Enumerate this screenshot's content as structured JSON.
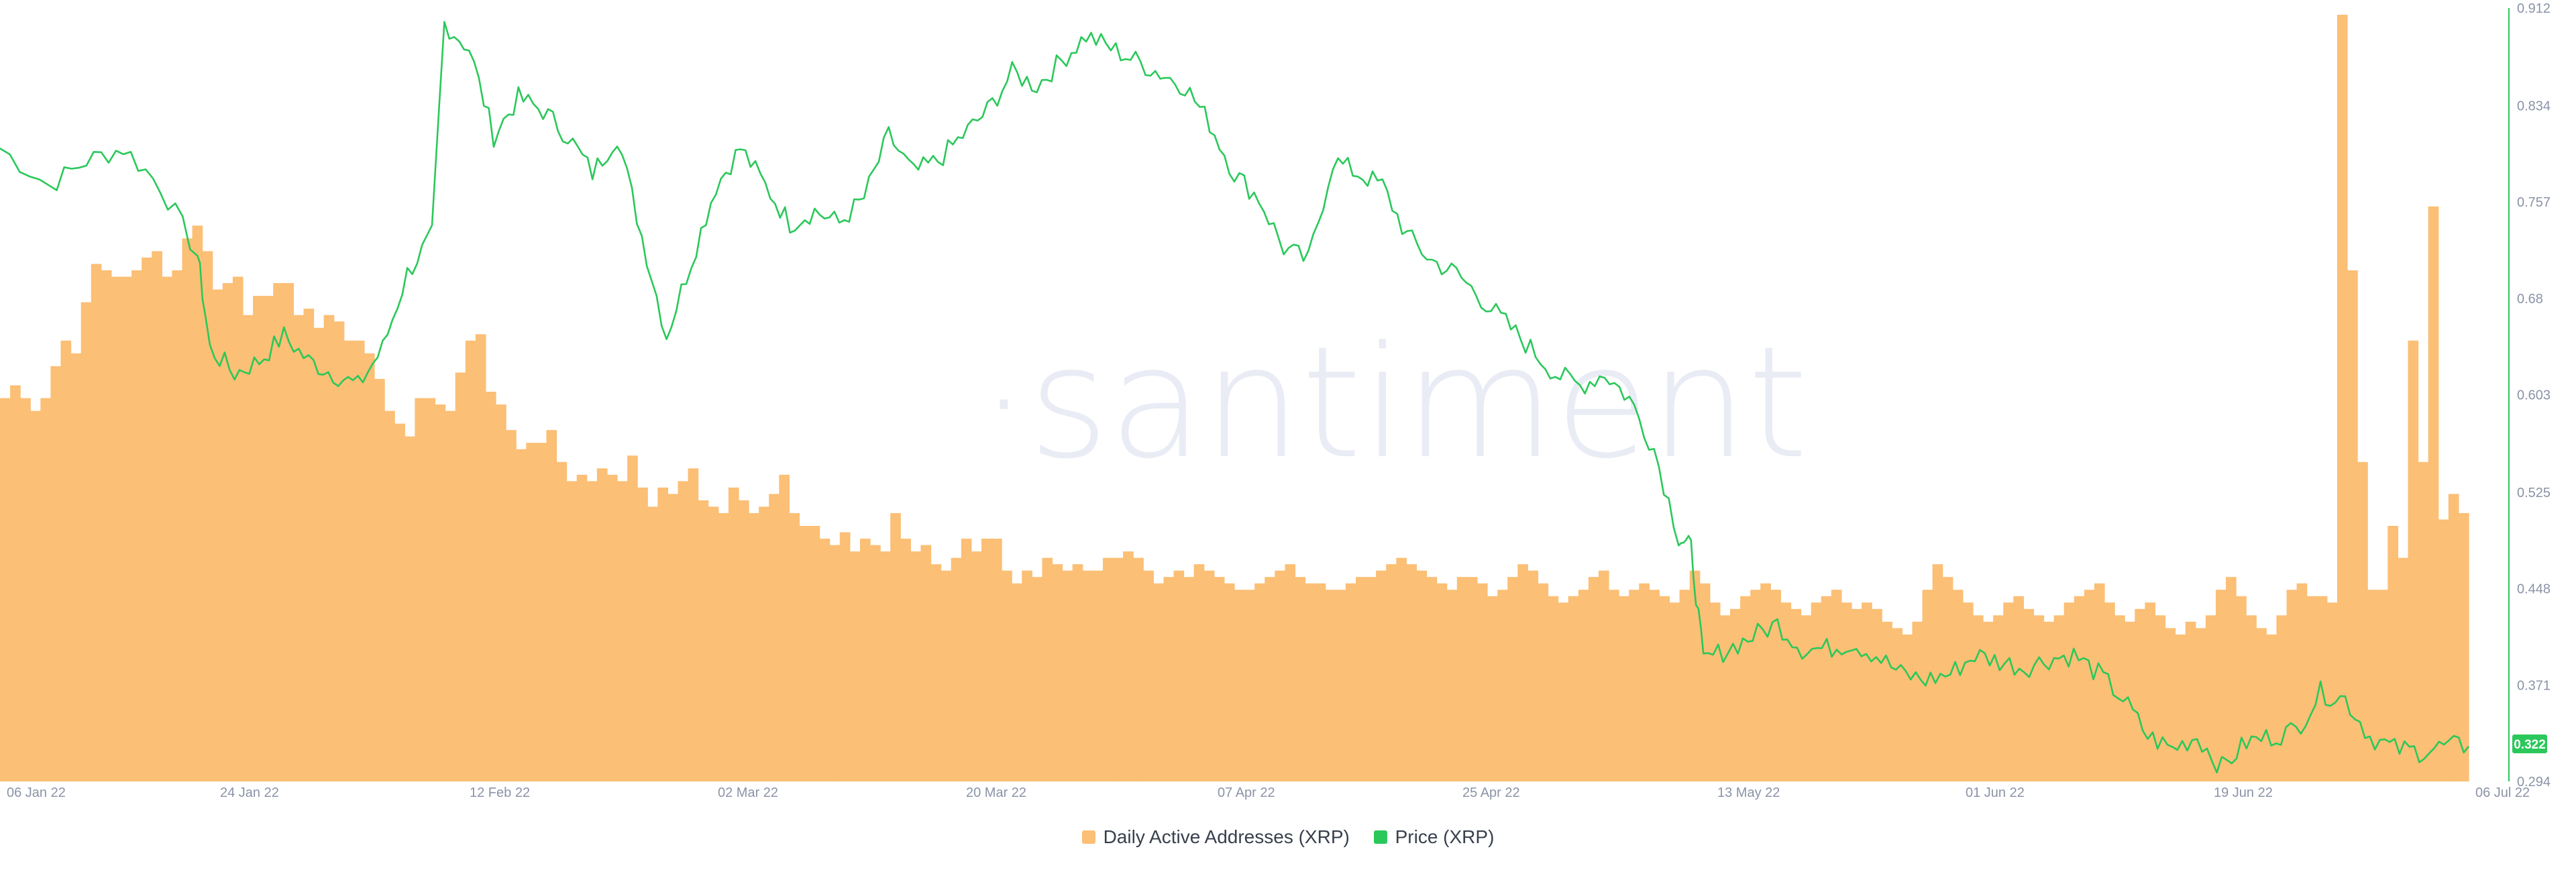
{
  "chart_data": {
    "type": "bar+line",
    "watermark": "·santiment",
    "x_labels": [
      "06 Jan 22",
      "24 Jan 22",
      "12 Feb 22",
      "02 Mar 22",
      "20 Mar 22",
      "07 Apr 22",
      "25 Apr 22",
      "13 May 22",
      "01 Jun 22",
      "19 Jun 22",
      "06 Jul 22"
    ],
    "y_right_ticks": [
      "0.912",
      "0.834",
      "0.757",
      "0.68",
      "0.603",
      "0.525",
      "0.448",
      "0.371",
      "0.294"
    ],
    "y_right_range": [
      0.294,
      0.912
    ],
    "current_price_label": "0.322",
    "series": [
      {
        "name": "Daily Active Addresses (XRP)",
        "kind": "bar",
        "color": "#fbbf75",
        "values": [
          600,
          620,
          600,
          580,
          600,
          650,
          690,
          670,
          750,
          810,
          800,
          790,
          790,
          800,
          820,
          830,
          790,
          800,
          850,
          870,
          830,
          770,
          780,
          790,
          730,
          760,
          760,
          780,
          780,
          730,
          740,
          710,
          730,
          720,
          690,
          690,
          670,
          630,
          580,
          560,
          540,
          600,
          600,
          590,
          580,
          640,
          690,
          700,
          610,
          590,
          550,
          520,
          530,
          530,
          550,
          500,
          470,
          480,
          470,
          490,
          480,
          470,
          510,
          460,
          430,
          460,
          450,
          470,
          490,
          440,
          430,
          420,
          460,
          440,
          420,
          430,
          450,
          480,
          420,
          400,
          400,
          380,
          370,
          390,
          360,
          380,
          370,
          360,
          420,
          380,
          360,
          370,
          340,
          330,
          350,
          380,
          360,
          380,
          380,
          330,
          310,
          330,
          320,
          350,
          340,
          330,
          340,
          330,
          330,
          350,
          350,
          360,
          350,
          330,
          310,
          320,
          330,
          320,
          340,
          330,
          320,
          310,
          300,
          300,
          310,
          320,
          330,
          340,
          320,
          310,
          310,
          300,
          300,
          310,
          320,
          320,
          330,
          340,
          350,
          340,
          330,
          320,
          310,
          300,
          320,
          320,
          310,
          290,
          300,
          320,
          340,
          330,
          310,
          290,
          280,
          290,
          300,
          320,
          330,
          300,
          290,
          300,
          310,
          300,
          290,
          280,
          300,
          330,
          310,
          280,
          260,
          270,
          290,
          300,
          310,
          300,
          280,
          270,
          260,
          280,
          290,
          300,
          280,
          270,
          280,
          270,
          250,
          240,
          230,
          250,
          300,
          340,
          320,
          300,
          280,
          260,
          250,
          260,
          280,
          290,
          270,
          260,
          250,
          260,
          280,
          290,
          300,
          310,
          280,
          260,
          250,
          270,
          280,
          260,
          240,
          230,
          250,
          240,
          260,
          300,
          320,
          290,
          260,
          240,
          230,
          260,
          300,
          310,
          290,
          290,
          280,
          1200,
          800,
          500,
          300,
          300,
          400,
          350,
          690,
          500,
          900,
          410,
          450,
          420
        ],
        "values_note": ""
      },
      {
        "name": "Price (XRP)",
        "kind": "line",
        "color": "#2ac85a"
      }
    ],
    "legend_position": "bottom-center",
    "grid": false
  }
}
